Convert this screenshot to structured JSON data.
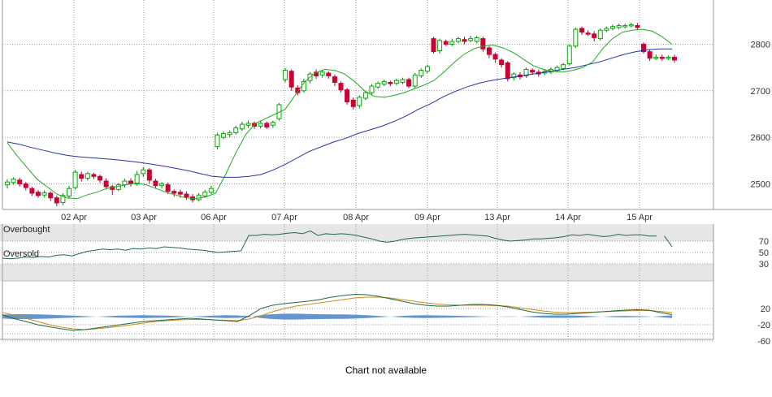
{
  "chart_data": [
    {
      "type": "candlestick",
      "panel": "price",
      "x_labels": [
        "02 Apr",
        "03 Apr",
        "06 Apr",
        "07 Apr",
        "08 Apr",
        "09 Apr",
        "13 Apr",
        "14 Apr",
        "15 Apr"
      ],
      "y_ticks": [
        2500,
        2600,
        2700,
        2800
      ],
      "ylim": [
        2445,
        2895
      ],
      "grid": true,
      "colors": {
        "up": "#00aa00",
        "down": "#cc0033",
        "ma_fast": "#22aa22",
        "ma_slow": "#2233aa",
        "grid": "#999999"
      },
      "candles": [
        [
          2498,
          2504,
          2490,
          2510
        ],
        [
          2503,
          2510,
          2498,
          2514
        ],
        [
          2508,
          2500,
          2494,
          2513
        ],
        [
          2500,
          2492,
          2486,
          2504
        ],
        [
          2490,
          2480,
          2474,
          2494
        ],
        [
          2482,
          2475,
          2470,
          2487
        ],
        [
          2476,
          2481,
          2471,
          2486
        ],
        [
          2480,
          2470,
          2463,
          2484
        ],
        [
          2470,
          2459,
          2452,
          2475
        ],
        [
          2460,
          2475,
          2454,
          2480
        ],
        [
          2474,
          2490,
          2468,
          2496
        ],
        [
          2492,
          2525,
          2488,
          2530
        ],
        [
          2520,
          2512,
          2505,
          2526
        ],
        [
          2512,
          2522,
          2507,
          2526
        ],
        [
          2520,
          2516,
          2510,
          2524
        ],
        [
          2516,
          2508,
          2502,
          2520
        ],
        [
          2506,
          2494,
          2488,
          2512
        ],
        [
          2494,
          2488,
          2476,
          2498
        ],
        [
          2488,
          2498,
          2484,
          2502
        ],
        [
          2498,
          2506,
          2492,
          2511
        ],
        [
          2506,
          2500,
          2494,
          2512
        ],
        [
          2500,
          2520,
          2496,
          2528
        ],
        [
          2522,
          2530,
          2515,
          2536
        ],
        [
          2530,
          2508,
          2500,
          2534
        ],
        [
          2506,
          2496,
          2490,
          2511
        ],
        [
          2496,
          2500,
          2490,
          2504
        ],
        [
          2498,
          2484,
          2478,
          2503
        ],
        [
          2484,
          2480,
          2472,
          2488
        ],
        [
          2482,
          2478,
          2470,
          2488
        ],
        [
          2478,
          2472,
          2466,
          2484
        ],
        [
          2472,
          2466,
          2460,
          2478
        ],
        [
          2466,
          2476,
          2462,
          2480
        ],
        [
          2474,
          2482,
          2470,
          2487
        ],
        [
          2482,
          2490,
          2478,
          2496
        ],
        [
          2580,
          2605,
          2574,
          2610
        ],
        [
          2600,
          2608,
          2596,
          2613
        ],
        [
          2606,
          2610,
          2600,
          2615
        ],
        [
          2610,
          2620,
          2606,
          2625
        ],
        [
          2618,
          2628,
          2614,
          2633
        ],
        [
          2626,
          2630,
          2620,
          2636
        ],
        [
          2630,
          2624,
          2618,
          2634
        ],
        [
          2624,
          2630,
          2619,
          2636
        ],
        [
          2630,
          2622,
          2618,
          2634
        ],
        [
          2626,
          2632,
          2620,
          2636
        ],
        [
          2640,
          2670,
          2636,
          2674
        ],
        [
          2724,
          2744,
          2718,
          2748
        ],
        [
          2742,
          2708,
          2700,
          2746
        ],
        [
          2706,
          2696,
          2690,
          2712
        ],
        [
          2700,
          2720,
          2696,
          2726
        ],
        [
          2722,
          2736,
          2716,
          2740
        ],
        [
          2740,
          2732,
          2726,
          2746
        ],
        [
          2734,
          2740,
          2728,
          2745
        ],
        [
          2738,
          2732,
          2726,
          2742
        ],
        [
          2730,
          2718,
          2710,
          2735
        ],
        [
          2716,
          2702,
          2696,
          2720
        ],
        [
          2702,
          2676,
          2670,
          2706
        ],
        [
          2680,
          2666,
          2660,
          2686
        ],
        [
          2668,
          2686,
          2662,
          2690
        ],
        [
          2684,
          2696,
          2680,
          2700
        ],
        [
          2696,
          2710,
          2692,
          2714
        ],
        [
          2708,
          2716,
          2704,
          2720
        ],
        [
          2714,
          2720,
          2710,
          2724
        ],
        [
          2718,
          2716,
          2710,
          2722
        ],
        [
          2716,
          2722,
          2712,
          2726
        ],
        [
          2718,
          2724,
          2714,
          2728
        ],
        [
          2724,
          2710,
          2706,
          2728
        ],
        [
          2710,
          2734,
          2706,
          2738
        ],
        [
          2732,
          2744,
          2728,
          2748
        ],
        [
          2742,
          2752,
          2738,
          2756
        ],
        [
          2812,
          2784,
          2780,
          2816
        ],
        [
          2786,
          2808,
          2780,
          2812
        ],
        [
          2806,
          2800,
          2796,
          2810
        ],
        [
          2800,
          2806,
          2796,
          2812
        ],
        [
          2806,
          2812,
          2802,
          2816
        ],
        [
          2810,
          2806,
          2800,
          2816
        ],
        [
          2808,
          2812,
          2804,
          2818
        ],
        [
          2806,
          2814,
          2802,
          2818
        ],
        [
          2812,
          2790,
          2784,
          2816
        ],
        [
          2792,
          2778,
          2770,
          2796
        ],
        [
          2778,
          2768,
          2760,
          2782
        ],
        [
          2766,
          2756,
          2750,
          2770
        ],
        [
          2760,
          2726,
          2720,
          2764
        ],
        [
          2728,
          2736,
          2722,
          2740
        ],
        [
          2734,
          2730,
          2724,
          2740
        ],
        [
          2732,
          2746,
          2728,
          2750
        ],
        [
          2744,
          2740,
          2734,
          2748
        ],
        [
          2740,
          2736,
          2730,
          2746
        ],
        [
          2738,
          2742,
          2734,
          2746
        ],
        [
          2740,
          2746,
          2736,
          2750
        ],
        [
          2744,
          2750,
          2740,
          2754
        ],
        [
          2748,
          2756,
          2744,
          2760
        ],
        [
          2758,
          2796,
          2754,
          2800
        ],
        [
          2796,
          2832,
          2792,
          2836
        ],
        [
          2834,
          2826,
          2820,
          2838
        ],
        [
          2824,
          2822,
          2818,
          2830
        ],
        [
          2822,
          2814,
          2806,
          2828
        ],
        [
          2812,
          2830,
          2808,
          2834
        ],
        [
          2830,
          2834,
          2826,
          2838
        ],
        [
          2834,
          2838,
          2830,
          2842
        ],
        [
          2836,
          2840,
          2832,
          2844
        ],
        [
          2838,
          2840,
          2834,
          2844
        ],
        [
          2840,
          2842,
          2836,
          2846
        ],
        [
          2840,
          2836,
          2830,
          2846
        ],
        [
          2800,
          2784,
          2780,
          2804
        ],
        [
          2784,
          2770,
          2764,
          2788
        ],
        [
          2770,
          2772,
          2766,
          2778
        ],
        [
          2772,
          2770,
          2764,
          2778
        ],
        [
          2770,
          2772,
          2766,
          2776
        ],
        [
          2772,
          2766,
          2760,
          2778
        ]
      ],
      "series": [
        {
          "kind": "sma_fast",
          "values": [
            2588,
            2560,
            2535,
            2510,
            2494,
            2478,
            2470,
            2468,
            2476,
            2482,
            2490,
            2494,
            2498,
            2502,
            2498,
            2490,
            2482,
            2476,
            2470,
            2468,
            2472,
            2480,
            2520,
            2565,
            2605,
            2630,
            2640,
            2650,
            2660,
            2690,
            2720,
            2738,
            2746,
            2744,
            2736,
            2720,
            2700,
            2688,
            2686,
            2690,
            2696,
            2704,
            2712,
            2722,
            2740,
            2760,
            2778,
            2790,
            2796,
            2798,
            2792,
            2782,
            2768,
            2754,
            2746,
            2742,
            2740,
            2744,
            2750,
            2762,
            2790,
            2812,
            2826,
            2830,
            2832,
            2828,
            2816,
            2800
          ]
        },
        {
          "kind": "sma_slow",
          "values": [
            2590,
            2585,
            2578,
            2572,
            2566,
            2561,
            2558,
            2556,
            2554,
            2552,
            2549,
            2546,
            2542,
            2538,
            2533,
            2528,
            2522,
            2516,
            2514,
            2514,
            2516,
            2520,
            2530,
            2542,
            2556,
            2570,
            2580,
            2590,
            2598,
            2608,
            2616,
            2624,
            2634,
            2646,
            2660,
            2672,
            2686,
            2698,
            2708,
            2716,
            2722,
            2726,
            2730,
            2734,
            2738,
            2742,
            2746,
            2750,
            2756,
            2762,
            2770,
            2778,
            2784,
            2788,
            2790,
            2790
          ]
        }
      ]
    },
    {
      "type": "line",
      "panel": "oscillator-1",
      "y_ticks": [
        70,
        50,
        30
      ],
      "zones": {
        "overbought": "Overbought",
        "overbought_level": 70,
        "oversold": "Oversold",
        "oversold_level": 30
      },
      "colors": {
        "line": "#226655",
        "zone": "#e6e6e6"
      },
      "values": [
        40,
        39,
        40,
        42,
        41,
        43,
        42,
        45,
        46,
        44,
        48,
        52,
        54,
        56,
        55,
        56,
        54,
        57,
        56,
        58,
        57,
        60,
        59,
        58,
        56,
        55,
        54,
        52,
        50,
        51,
        52,
        53,
        80,
        80,
        82,
        81,
        82,
        84,
        85,
        83,
        88,
        80,
        83,
        82,
        83,
        82,
        80,
        77,
        74,
        70,
        68,
        70,
        73,
        75,
        76,
        77,
        78,
        79,
        80,
        81,
        82,
        81,
        80,
        79,
        75,
        72,
        70,
        71,
        72,
        74,
        74,
        75,
        76,
        78,
        81,
        80,
        82,
        80,
        78,
        79,
        82,
        80,
        81,
        81,
        79,
        79,
        79,
        60
      ]
    },
    {
      "type": "line",
      "panel": "oscillator-2",
      "y_ticks": [
        20,
        -20,
        -60
      ],
      "zones": {
        "oversold": "Oversold"
      },
      "colors": {
        "fast": "#1f6b3a",
        "slow": "#d08a1c",
        "histogram": "#4a82c8"
      },
      "series": [
        {
          "kind": "fast",
          "values": [
            5,
            -5,
            -12,
            -20,
            -25,
            -30,
            -34,
            -32,
            -28,
            -24,
            -20,
            -16,
            -12,
            -10,
            -8,
            -6,
            -4,
            -6,
            -8,
            -10,
            -12,
            2,
            20,
            28,
            32,
            35,
            38,
            42,
            48,
            52,
            55,
            54,
            50,
            44,
            38,
            32,
            28,
            26,
            26,
            28,
            30,
            30,
            28,
            24,
            18,
            12,
            8,
            6,
            6,
            8,
            10,
            12,
            14,
            16,
            17,
            16,
            10,
            5
          ]
        },
        {
          "kind": "slow",
          "values": [
            10,
            4,
            -4,
            -12,
            -20,
            -26,
            -30,
            -32,
            -30,
            -27,
            -24,
            -20,
            -16,
            -12,
            -10,
            -8,
            -7,
            -7,
            -8,
            -9,
            -10,
            -6,
            2,
            12,
            20,
            26,
            30,
            34,
            38,
            42,
            46,
            48,
            48,
            46,
            42,
            38,
            34,
            31,
            29,
            28,
            28,
            28,
            27,
            26,
            22,
            18,
            14,
            11,
            10,
            10,
            11,
            12,
            13,
            14,
            15,
            15,
            13,
            10
          ]
        },
        {
          "kind": "histogram",
          "values": [
            -8,
            -10,
            -10,
            -9,
            -8,
            -6,
            -4,
            -2,
            0,
            2,
            4,
            5,
            6,
            5,
            4,
            2,
            0,
            -2,
            -4,
            -6,
            -5,
            -2,
            6,
            10,
            12,
            12,
            11,
            10,
            9,
            9,
            8,
            6,
            3,
            0,
            -3,
            -5,
            -6,
            -5,
            -4,
            -3,
            -2,
            -1,
            0,
            1,
            0,
            -2,
            -4,
            -5,
            -5,
            -4,
            -2,
            0,
            2,
            3,
            2,
            1,
            -2,
            -6
          ]
        }
      ]
    }
  ],
  "footer_text": "Chart not available"
}
